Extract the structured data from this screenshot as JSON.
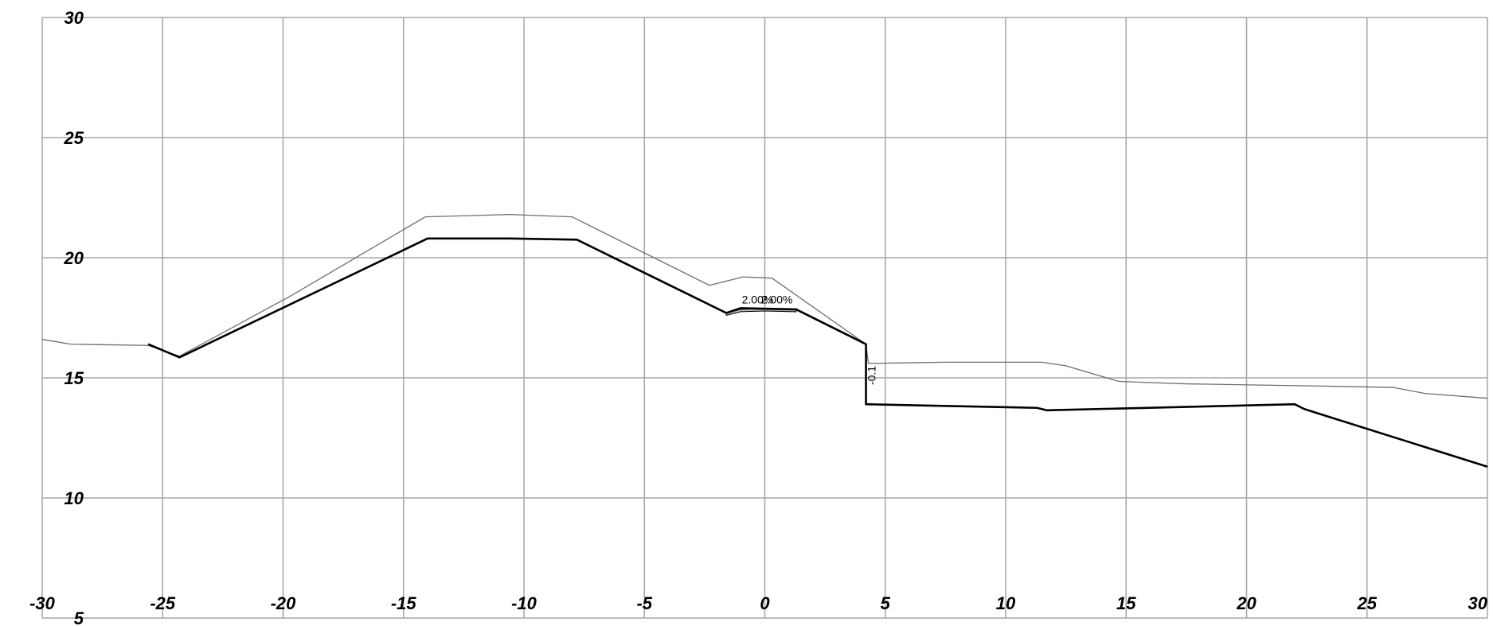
{
  "chart_data": {
    "type": "line",
    "title": "",
    "xlabel": "",
    "ylabel": "",
    "xlim": [
      -30,
      30
    ],
    "ylim": [
      5,
      30
    ],
    "x_ticks": [
      "-30",
      "-25",
      "-20",
      "-15",
      "-10",
      "-5",
      "0",
      "5",
      "10",
      "15",
      "20",
      "25",
      "30"
    ],
    "y_ticks": [
      "30",
      "25",
      "20",
      "15",
      "10",
      "5"
    ],
    "grid": true,
    "series": [
      {
        "style": "thin-gray",
        "color": "#6e6e6e",
        "points": [
          [
            -30,
            16.6
          ],
          [
            -28.8,
            16.4
          ],
          [
            -25.6,
            16.35
          ],
          [
            -24.3,
            15.9
          ],
          [
            -19.7,
            18.4
          ],
          [
            -14.1,
            21.7
          ],
          [
            -10.6,
            21.8
          ],
          [
            -8.0,
            21.7
          ],
          [
            -2.3,
            18.85
          ],
          [
            -0.9,
            19.2
          ],
          [
            0.3,
            19.15
          ],
          [
            4.2,
            16.4
          ],
          [
            4.3,
            15.6
          ],
          [
            7.5,
            15.65
          ],
          [
            11.5,
            15.65
          ],
          [
            12.5,
            15.5
          ],
          [
            14.7,
            14.85
          ],
          [
            17.5,
            14.75
          ],
          [
            23.5,
            14.65
          ],
          [
            26.1,
            14.6
          ],
          [
            27.4,
            14.35
          ],
          [
            30,
            14.15
          ]
        ]
      },
      {
        "style": "thick-black",
        "color": "#000000",
        "points": [
          [
            -25.6,
            16.4
          ],
          [
            -24.3,
            15.85
          ],
          [
            -14.0,
            20.8
          ],
          [
            -10.6,
            20.8
          ],
          [
            -7.8,
            20.75
          ],
          [
            -1.6,
            17.7
          ],
          [
            -1.0,
            17.9
          ],
          [
            1.3,
            17.85
          ],
          [
            4.2,
            16.4
          ],
          [
            4.2,
            13.9
          ],
          [
            11.3,
            13.75
          ],
          [
            11.7,
            13.65
          ],
          [
            22.0,
            13.9
          ],
          [
            22.4,
            13.7
          ],
          [
            30,
            11.3
          ]
        ]
      }
    ],
    "pavement_top": [
      [
        -1.6,
        17.7
      ],
      [
        -1.0,
        17.85
      ],
      [
        0.0,
        17.88
      ],
      [
        1.3,
        17.85
      ]
    ],
    "annotations": [
      {
        "text": "2.00%",
        "x": -0.3,
        "y": 18.1
      },
      {
        "text": "2.00%",
        "x": 0.5,
        "y": 18.1
      },
      {
        "text": "-0.1",
        "x": 4.6,
        "y": 15.1,
        "rotated": true
      }
    ]
  }
}
